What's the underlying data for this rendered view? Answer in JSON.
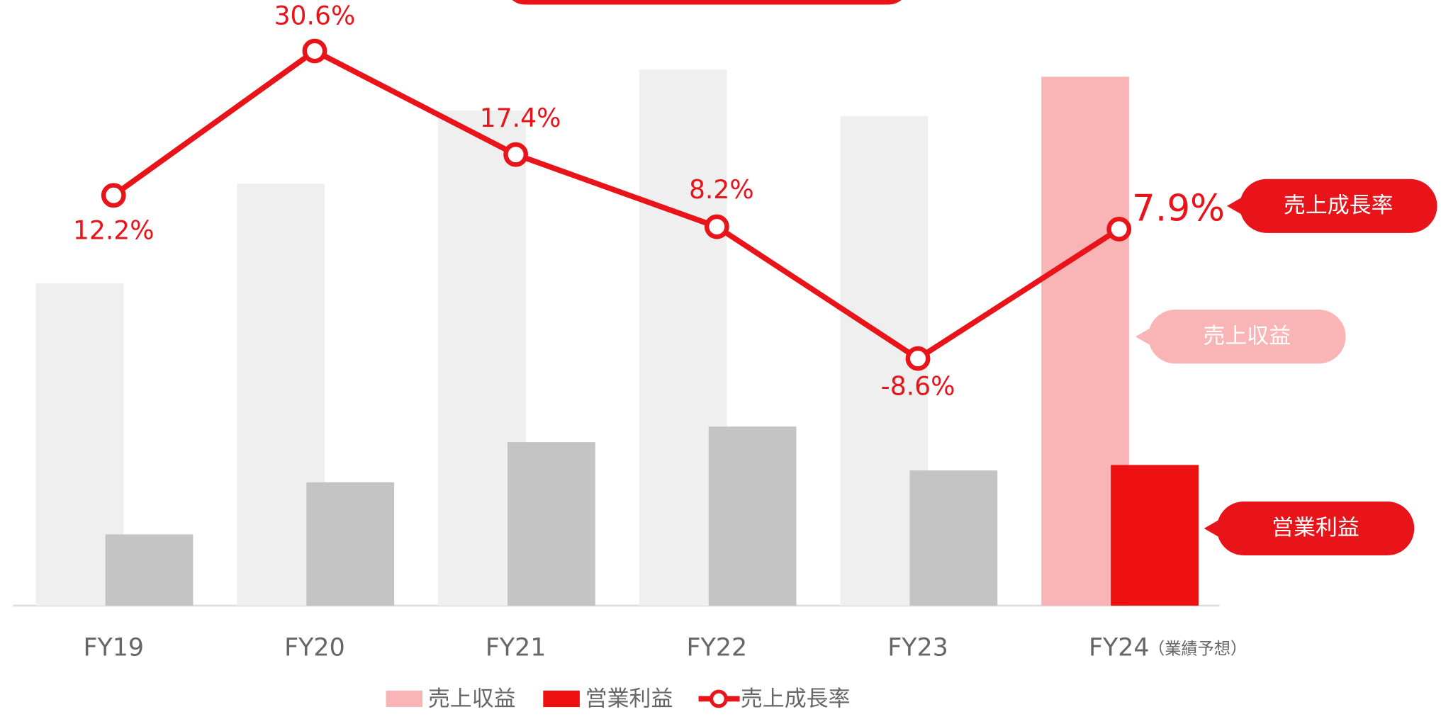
{
  "chart_data": {
    "type": "bar",
    "categories": [
      "FY19",
      "FY20",
      "FY21",
      "FY22",
      "FY23",
      "FY24"
    ],
    "category_note": "（業績予想）",
    "ylim": [
      0,
      663
    ],
    "y2lim": [
      -40.1,
      37.1
    ],
    "series": [
      {
        "name": "売上収益",
        "color": "#f9b5b5",
        "point_colors": [
          "#efefef",
          "#efefef",
          "#efefef",
          "#efefef",
          "#efefef",
          "#f9b5b5"
        ],
        "values": [
          353,
          462,
          542,
          587,
          536,
          579
        ]
      },
      {
        "name": "営業利益",
        "color": "#ee1111",
        "point_colors": [
          "#c4c4c4",
          "#c4c4c4",
          "#c4c4c4",
          "#c4c4c4",
          "#c4c4c4",
          "#ee1111"
        ],
        "values": [
          78,
          135,
          179,
          196,
          148,
          154
        ]
      },
      {
        "name": "売上成長率",
        "type": "line",
        "axis": "y2",
        "color": "#e8141a",
        "values": [
          12.2,
          30.6,
          17.4,
          8.2,
          -8.6,
          7.9
        ],
        "value_labels": [
          "12.2%",
          "30.6%",
          "17.4%",
          "8.2%",
          "-8.6%",
          "7.9%"
        ]
      }
    ]
  }
}
